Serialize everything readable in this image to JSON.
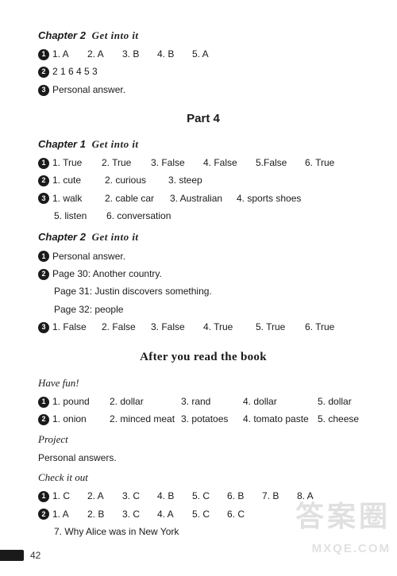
{
  "colors": {
    "bg": "#ffffff",
    "text": "#1a1a1a",
    "bullet_bg": "#1a1a1a",
    "bullet_fg": "#ffffff",
    "watermark": "rgba(0,0,0,0.12)"
  },
  "typography": {
    "base_font": "Arial",
    "base_size_pt": 9,
    "title_size_pt": 11,
    "section_font": "Times New Roman"
  },
  "top_chapter2": {
    "title_prefix": "Chapter 2",
    "title_suffix": "Get into it",
    "q1": [
      "1. A",
      "2. A",
      "3. B",
      "4. B",
      "5. A"
    ],
    "q2": "2 1 6 4 5 3",
    "q3": "Personal answer."
  },
  "part4": {
    "title": "Part 4",
    "chapter1": {
      "title_prefix": "Chapter 1",
      "title_suffix": "Get into it",
      "q1": [
        "1. True",
        "2. True",
        "3. False",
        "4. False",
        "5.False",
        "6. True"
      ],
      "q2": [
        "1. cute",
        "2. curious",
        "3. steep"
      ],
      "q3_row1": [
        "1. walk",
        "2. cable car",
        "3. Australian",
        "4. sports shoes"
      ],
      "q3_row2": [
        "5. listen",
        "6. conversation"
      ]
    },
    "chapter2": {
      "title_prefix": "Chapter 2",
      "title_suffix": "Get into it",
      "q1": "Personal answer.",
      "q2_lines": [
        "Page 30: Another country.",
        "Page 31: Justin discovers something.",
        "Page 32: people"
      ],
      "q3": [
        "1. False",
        "2. False",
        "3. False",
        "4. True",
        "5. True",
        "6. True"
      ]
    }
  },
  "after": {
    "title": "After you read the book",
    "have_fun": "Have fun!",
    "q1": [
      "1. pound",
      "2. dollar",
      "3. rand",
      "4. dollar",
      "5. dollar"
    ],
    "q2": [
      "1. onion",
      "2. minced meat",
      "3. potatoes",
      "4. tomato paste",
      "5. cheese"
    ],
    "project_label": "Project",
    "project_text": "Personal answers.",
    "check_label": "Check it out",
    "cq1": [
      "1. C",
      "2. A",
      "3. C",
      "4. B",
      "5. C",
      "6. B",
      "7. B",
      "8. A"
    ],
    "cq2_row1": [
      "1. A",
      "2. B",
      "3. C",
      "4. A",
      "5. C",
      "6. C"
    ],
    "cq2_row2": "7. Why Alice was in New York"
  },
  "page_number": "42",
  "watermark_text": "答案圈",
  "watermark_url": "MXQE.COM",
  "bullets": {
    "b1": "1",
    "b2": "2",
    "b3": "3"
  },
  "col_widths": {
    "six": [
      62,
      62,
      66,
      66,
      62,
      52
    ],
    "five": [
      72,
      90,
      78,
      94,
      60
    ],
    "four": [
      66,
      82,
      84,
      100
    ],
    "three": [
      66,
      80,
      70
    ],
    "eight_mc": [
      44,
      44,
      44,
      44,
      44,
      44,
      44,
      44
    ],
    "six_mc": [
      44,
      44,
      44,
      44,
      44,
      44
    ],
    "five_mc": [
      44,
      44,
      44,
      44,
      44
    ]
  }
}
